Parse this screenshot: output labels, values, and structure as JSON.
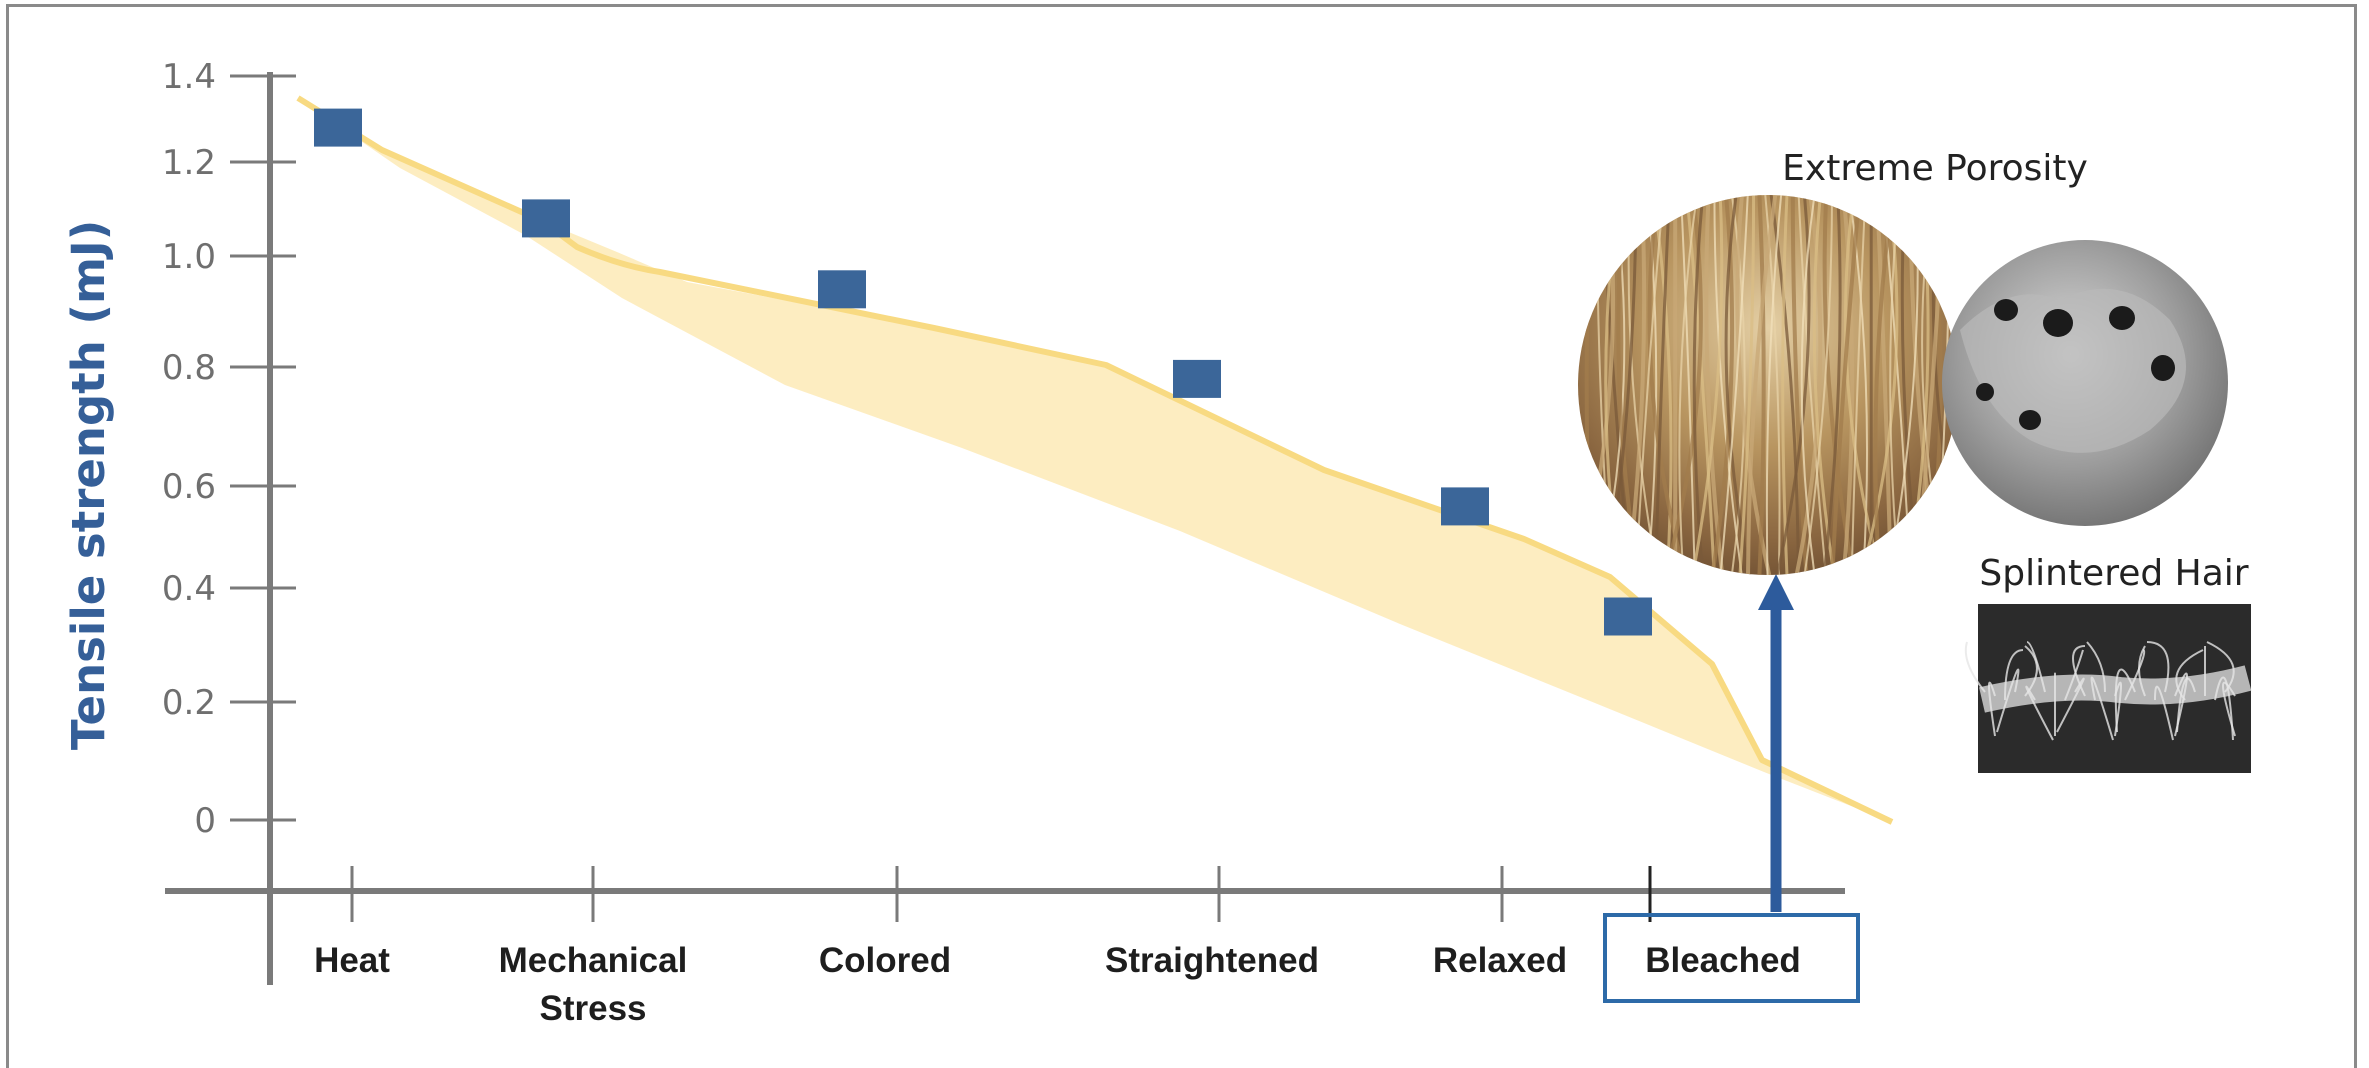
{
  "chart_data": {
    "type": "scatter",
    "ylabel": "Tensile strength (mJ)",
    "xlabel": "",
    "title": "",
    "ylim": [
      0,
      1.4
    ],
    "y_ticks": [
      "0",
      "0.2",
      "0.4",
      "0.6",
      "0.8",
      "1.0",
      "1.2",
      "1.4"
    ],
    "grid": false,
    "categories": [
      "Heat",
      "Mechanical Stress",
      "Colored",
      "Straightened",
      "Relaxed",
      "Bleached"
    ],
    "highlighted_category": "Bleached",
    "series": [
      {
        "values": [
          1.28,
          1.08,
          0.94,
          0.78,
          0.56,
          0.35
        ],
        "color": "#3b6699",
        "marker": "square"
      }
    ],
    "trend_band_color": "#fce7ac",
    "trend_line_color": "#f8da82",
    "annotations": {
      "extreme_porosity": "Extreme Porosity",
      "splintered_hair": "Splintered Hair"
    },
    "arrow_color": "#2d5b9c"
  }
}
